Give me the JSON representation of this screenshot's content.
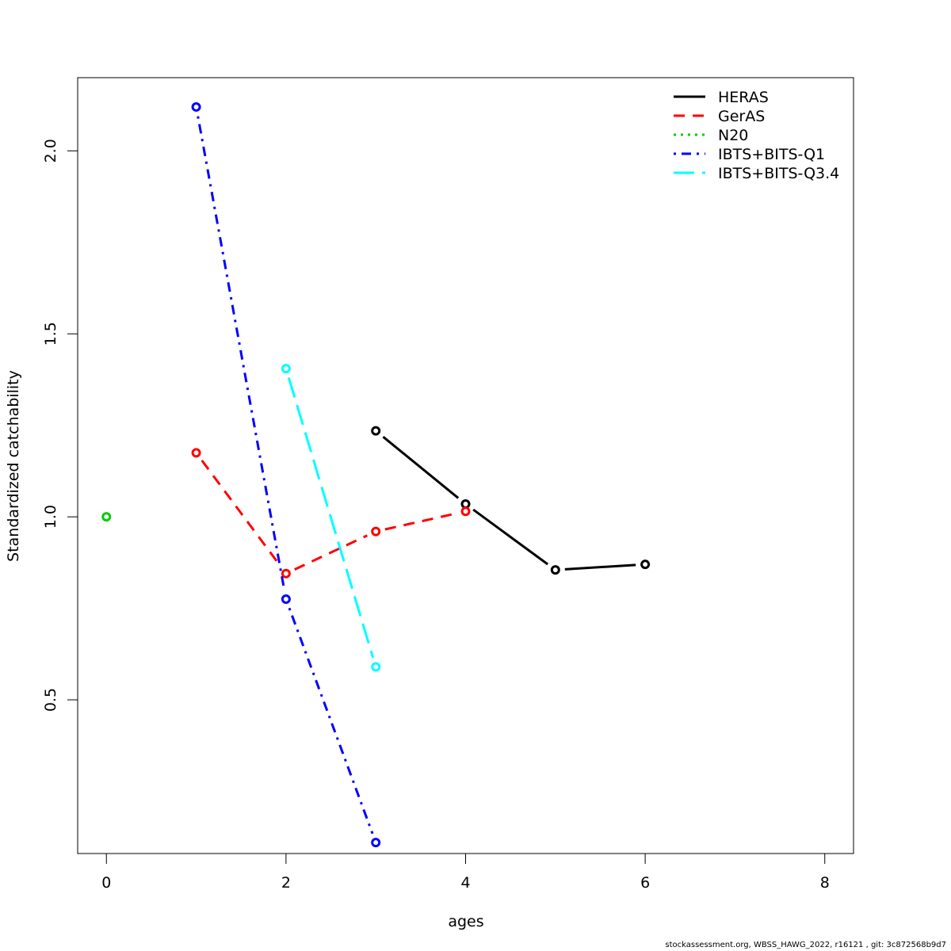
{
  "chart_data": {
    "type": "line",
    "xlabel": "ages",
    "ylabel": "Standardized catchability",
    "xlim": [
      -0.32,
      8.32
    ],
    "ylim": [
      0.08,
      2.2
    ],
    "xticks": [
      0,
      2,
      4,
      6,
      8
    ],
    "xtick_labels": [
      "0",
      "2",
      "4",
      "6",
      "8"
    ],
    "yticks": [
      0.5,
      1.0,
      1.5,
      2.0
    ],
    "ytick_labels": [
      "0.5",
      "1.0",
      "1.5",
      "2.0"
    ],
    "grid": false,
    "legend_position": "top-right",
    "series": [
      {
        "name": "HERAS",
        "color": "#000000",
        "line_style": "solid",
        "x": [
          3,
          4,
          5,
          6
        ],
        "y": [
          1.235,
          1.035,
          0.855,
          0.87
        ]
      },
      {
        "name": "GerAS",
        "color": "#ff0000",
        "line_style": "dashed",
        "x": [
          1,
          2,
          3,
          4
        ],
        "y": [
          1.175,
          0.845,
          0.96,
          1.015
        ]
      },
      {
        "name": "N20",
        "color": "#00cd00",
        "line_style": "dotted",
        "x": [
          0
        ],
        "y": [
          1.0
        ]
      },
      {
        "name": "IBTS+BITS-Q1",
        "color": "#0000ff",
        "line_style": "dotdash",
        "x": [
          1,
          2,
          3
        ],
        "y": [
          2.12,
          0.775,
          0.11
        ]
      },
      {
        "name": "IBTS+BITS-Q3.4",
        "color": "#00ffff",
        "line_style": "longdash",
        "x": [
          2,
          3
        ],
        "y": [
          1.405,
          0.59
        ]
      }
    ]
  },
  "footer_text": "stockassessment.org, WBSS_HAWG_2022, r16121 , git: 3c872568b9d7"
}
